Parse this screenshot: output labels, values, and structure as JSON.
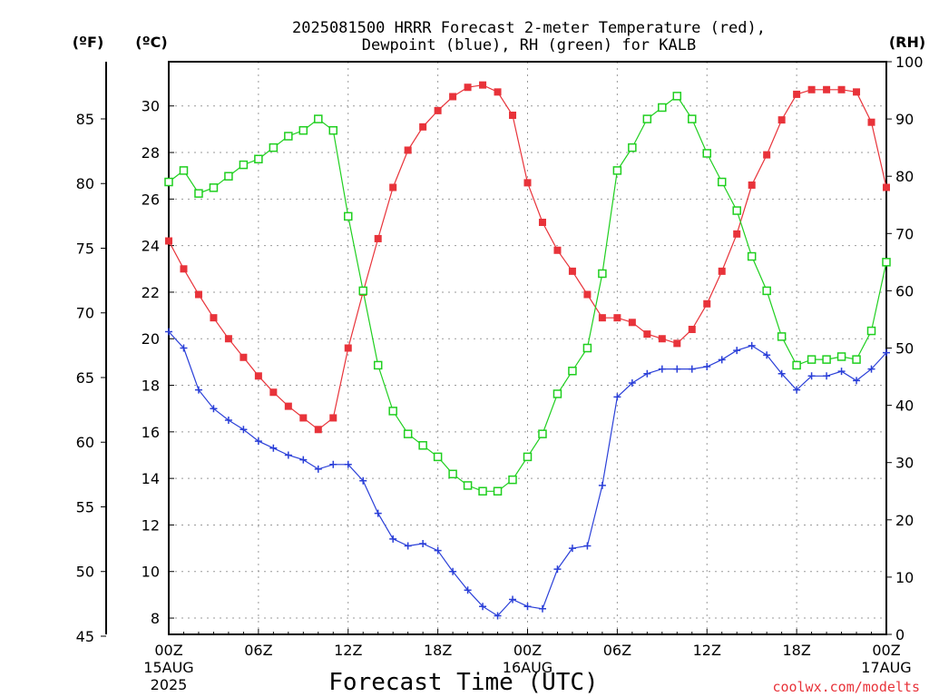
{
  "chart_data": {
    "type": "line",
    "title_line1": "2025081500 HRRR Forecast 2-meter Temperature (red),",
    "title_line2": "Dewpoint (blue), RH (green) for KALB",
    "xlabel": "Forecast Time (UTC)",
    "credit": "coolwx.com/modelts",
    "left_axis_f_label": "(ºF)",
    "left_axis_c_label": "(ºC)",
    "right_axis_label": "(RH)",
    "x_range_hours": [
      0,
      48
    ],
    "c_range": [
      7.3,
      31.9
    ],
    "rh_range": [
      0,
      100
    ],
    "grid": true,
    "x_ticks": [
      {
        "hour": 0,
        "label": "00Z",
        "sub1": "15AUG",
        "sub2": "2025"
      },
      {
        "hour": 6,
        "label": "06Z",
        "sub1": "",
        "sub2": ""
      },
      {
        "hour": 12,
        "label": "12Z",
        "sub1": "",
        "sub2": ""
      },
      {
        "hour": 18,
        "label": "18Z",
        "sub1": "",
        "sub2": ""
      },
      {
        "hour": 24,
        "label": "00Z",
        "sub1": "16AUG",
        "sub2": ""
      },
      {
        "hour": 30,
        "label": "06Z",
        "sub1": "",
        "sub2": ""
      },
      {
        "hour": 36,
        "label": "12Z",
        "sub1": "",
        "sub2": ""
      },
      {
        "hour": 42,
        "label": "18Z",
        "sub1": "",
        "sub2": ""
      },
      {
        "hour": 48,
        "label": "00Z",
        "sub1": "17AUG",
        "sub2": ""
      }
    ],
    "c_ticks": [
      8,
      10,
      12,
      14,
      16,
      18,
      20,
      22,
      24,
      26,
      28,
      30
    ],
    "f_ticks": [
      45,
      50,
      55,
      60,
      65,
      70,
      75,
      80,
      85
    ],
    "rh_ticks": [
      0,
      10,
      20,
      30,
      40,
      50,
      60,
      70,
      80,
      90,
      100
    ],
    "series": [
      {
        "name": "Temperature",
        "color": "#e8333a",
        "marker": "filled-square",
        "units": "C",
        "values": [
          24.2,
          23.0,
          21.9,
          20.9,
          20.0,
          19.2,
          18.4,
          17.7,
          17.1,
          16.6,
          16.1,
          16.6,
          19.6,
          22.0,
          24.3,
          26.5,
          28.1,
          29.1,
          29.8,
          30.4,
          30.8,
          30.9,
          30.6,
          29.6,
          26.7,
          25.0,
          23.8,
          22.9,
          21.9,
          20.9,
          20.9,
          20.7,
          20.2,
          20.0,
          19.8,
          20.4,
          21.5,
          22.9,
          24.5,
          26.6,
          27.9,
          29.4,
          30.5,
          30.7,
          30.7,
          30.7,
          30.6,
          29.3,
          26.5
        ]
      },
      {
        "name": "Dewpoint",
        "color": "#2a3fd8",
        "marker": "plus",
        "units": "C",
        "values": [
          20.3,
          19.6,
          17.8,
          17.0,
          16.5,
          16.1,
          15.6,
          15.3,
          15.0,
          14.8,
          14.4,
          14.6,
          14.6,
          13.9,
          12.5,
          11.4,
          11.1,
          11.2,
          10.9,
          10.0,
          9.2,
          8.5,
          8.1,
          8.8,
          8.5,
          8.4,
          10.1,
          11.0,
          11.1,
          13.7,
          17.5,
          18.1,
          18.5,
          18.7,
          18.7,
          18.7,
          18.8,
          19.1,
          19.5,
          19.7,
          19.3,
          18.5,
          17.8,
          18.4,
          18.4,
          18.6,
          18.2,
          18.7,
          19.4
        ]
      },
      {
        "name": "RH",
        "color": "#1fcf1f",
        "marker": "open-square",
        "units": "%",
        "values": [
          79,
          81,
          77,
          78,
          80,
          82,
          83,
          85,
          87,
          88,
          90,
          88,
          73,
          60,
          47,
          39,
          35,
          33,
          31,
          28,
          26,
          25,
          25,
          27,
          31,
          35,
          42,
          46,
          50,
          63,
          81,
          85,
          90,
          92,
          94,
          90,
          84,
          79,
          74,
          66,
          60,
          52,
          47,
          48,
          48,
          48.5,
          48,
          53,
          65
        ]
      }
    ]
  }
}
